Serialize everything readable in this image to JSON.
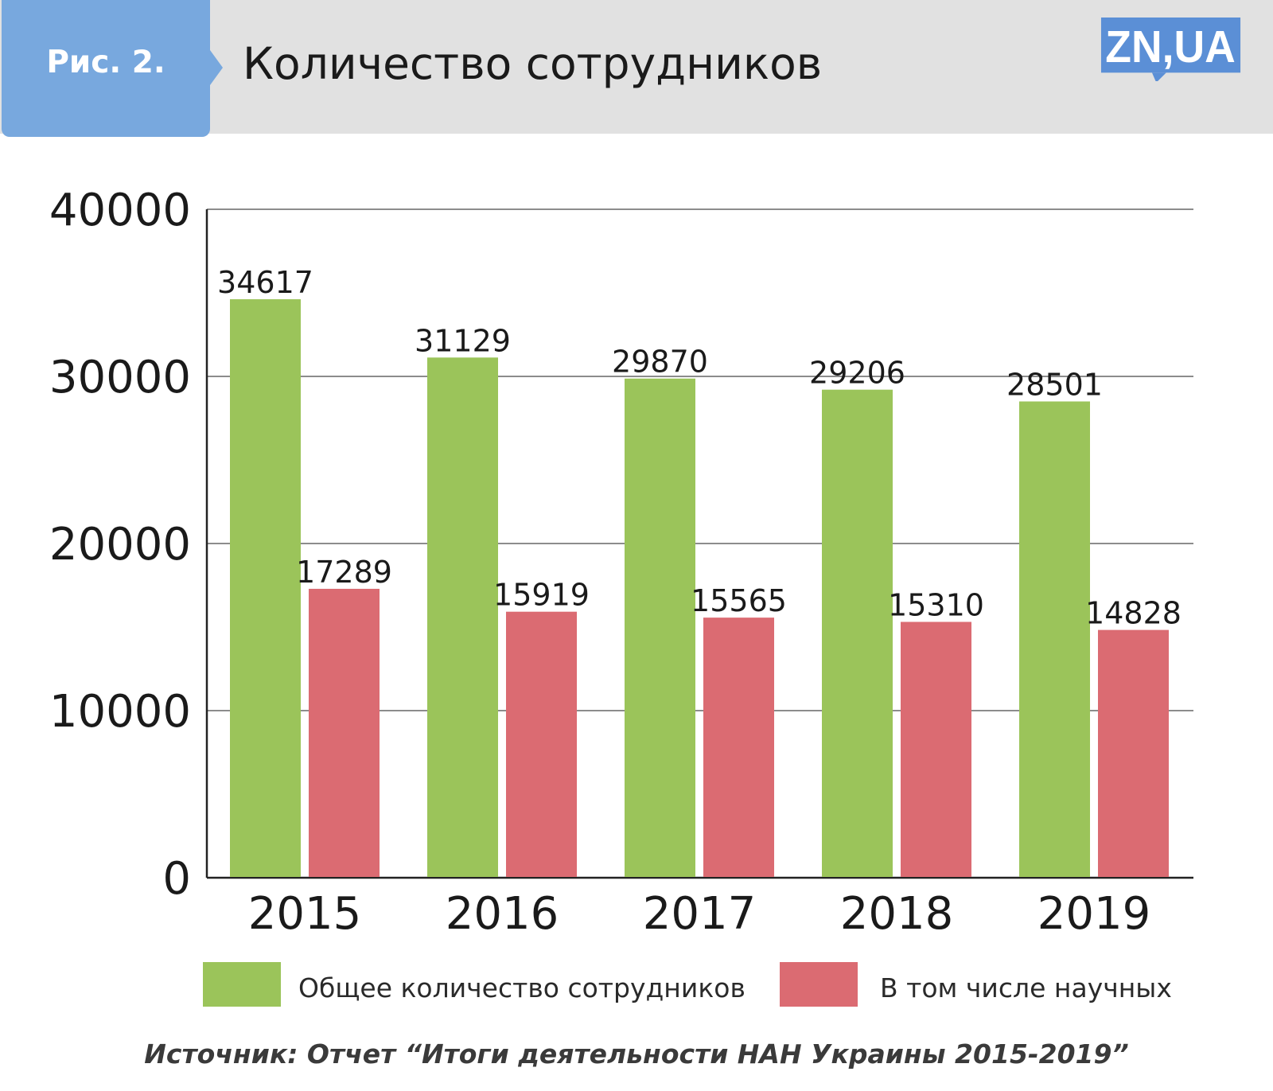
{
  "header": {
    "figure_label": "Рис. 2.",
    "title": "Количество сотрудников",
    "logo_text": "ZN,UA",
    "badge_color": "#78a8de",
    "header_bg": "#e1e1e1"
  },
  "chart_data": {
    "type": "bar",
    "title": "Количество сотрудников",
    "categories": [
      "2015",
      "2016",
      "2017",
      "2018",
      "2019"
    ],
    "series": [
      {
        "name": "Общее количество сотрудников",
        "color": "#9bc45a",
        "values": [
          34617,
          31129,
          29870,
          29206,
          28501
        ]
      },
      {
        "name": "В том числе научных",
        "color": "#db6b72",
        "values": [
          17289,
          15919,
          15565,
          15310,
          14828
        ]
      }
    ],
    "ylim": [
      0,
      40000
    ],
    "yticks": [
      "0",
      "10000",
      "20000",
      "30000",
      "40000"
    ],
    "grid": true,
    "legend_position": "bottom"
  },
  "source": "Источник: Отчет “Итоги деятельности НАН Украины 2015-2019”"
}
